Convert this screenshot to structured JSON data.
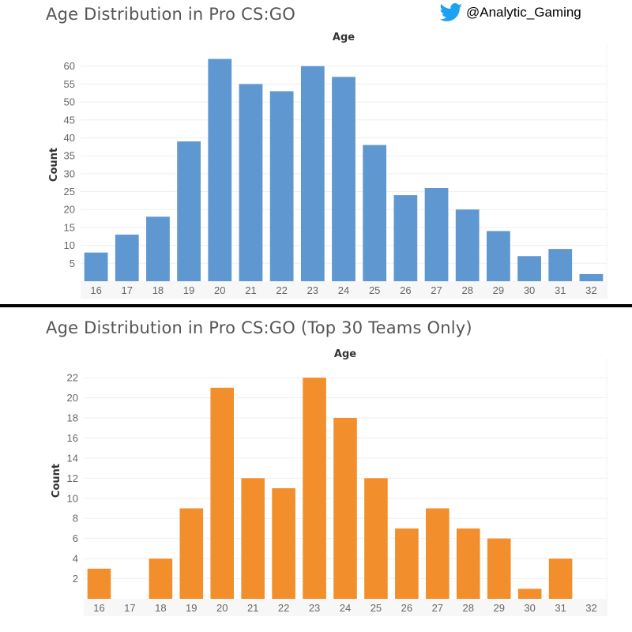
{
  "credit": {
    "handle": "@Analytic_Gaming",
    "icon": "twitter-bird-icon",
    "icon_color": "#1DA1F2"
  },
  "chart_data": [
    {
      "type": "bar",
      "title": "Age Distribution in Pro CS:GO",
      "xlabel": "Age",
      "ylabel": "Count",
      "categories": [
        "16",
        "17",
        "18",
        "19",
        "20",
        "21",
        "22",
        "23",
        "24",
        "25",
        "26",
        "27",
        "28",
        "29",
        "30",
        "31",
        "32"
      ],
      "values": [
        8,
        13,
        18,
        39,
        62,
        55,
        53,
        60,
        57,
        38,
        24,
        26,
        20,
        14,
        7,
        9,
        2
      ],
      "ylim": [
        0,
        65
      ],
      "yticks": [
        5,
        10,
        15,
        20,
        25,
        30,
        35,
        40,
        45,
        50,
        55,
        60
      ],
      "color": "#5F97D0",
      "grid": true
    },
    {
      "type": "bar",
      "title": "Age Distribution in Pro CS:GO (Top 30 Teams Only)",
      "xlabel": "Age",
      "ylabel": "Count",
      "categories": [
        "16",
        "17",
        "18",
        "19",
        "20",
        "21",
        "22",
        "23",
        "24",
        "25",
        "26",
        "27",
        "28",
        "29",
        "30",
        "31",
        "32"
      ],
      "values": [
        3,
        0,
        4,
        9,
        21,
        12,
        11,
        22,
        18,
        12,
        7,
        9,
        7,
        6,
        1,
        4,
        0
      ],
      "ylim": [
        0,
        23.5
      ],
      "yticks": [
        2,
        4,
        6,
        8,
        10,
        12,
        14,
        16,
        18,
        20,
        22
      ],
      "color": "#F28E2B",
      "grid": true
    }
  ]
}
